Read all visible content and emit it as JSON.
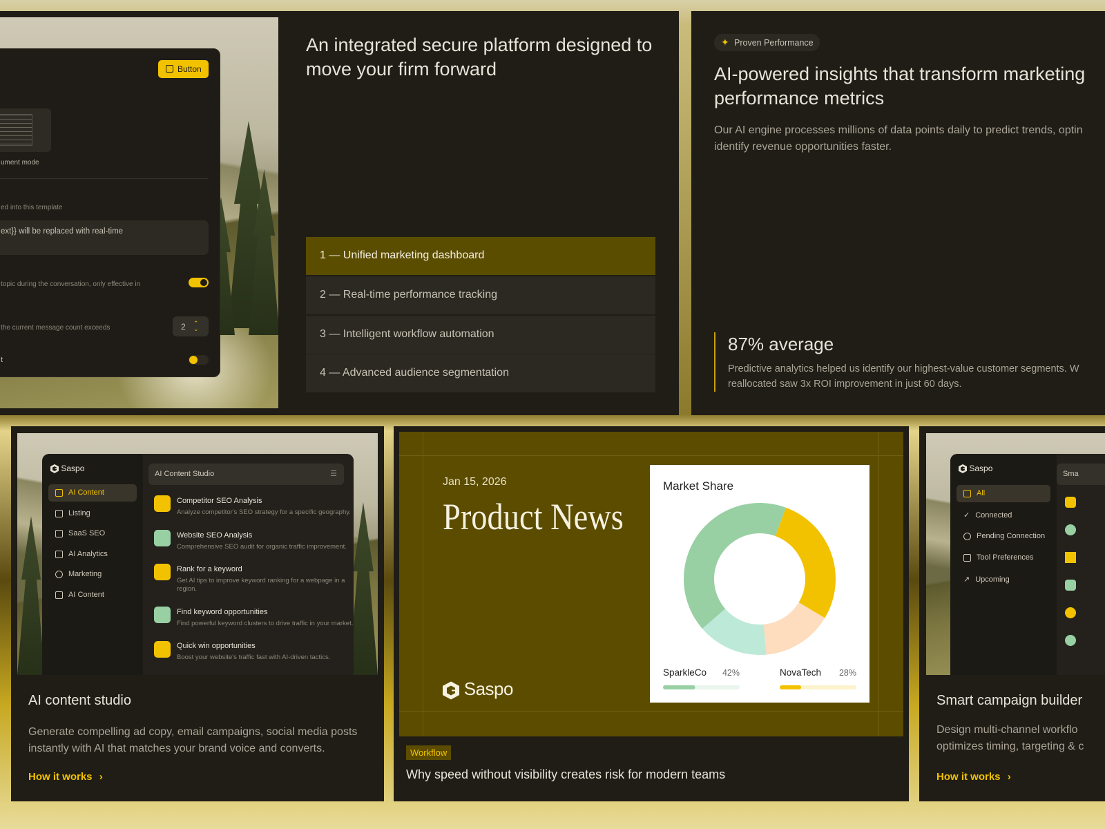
{
  "hero": {
    "settings_panel": {
      "button": "Button",
      "mode_label": "ument mode",
      "template_label": "ed into this template",
      "template_text": "ext}} will be replaced with real-time",
      "topic_label": "topic during the conversation, only effective in",
      "count_label": "the current message count exceeds",
      "count_value": 2,
      "last_label": "t"
    },
    "headline": "An integrated secure platform designed to move your firm forward",
    "features": [
      "1 — Unified marketing dashboard",
      "2 — Real-time performance tracking",
      "3 — Intelligent workflow automation",
      "4 — Advanced audience segmentation"
    ]
  },
  "insights": {
    "badge": "Proven Performance",
    "headline": "AI-powered insights that transform marketing performance metrics",
    "body_lines": [
      "Our AI engine processes millions of data points daily to predict trends, optin",
      "identify revenue opportunities faster."
    ],
    "stat": "87% average",
    "quote_lines": [
      "Predictive analytics helped us identify our highest-value customer segments. W",
      "reallocated saw 3x ROI improvement in just 60 days."
    ]
  },
  "content_card": {
    "app": {
      "logo": "Saspo",
      "nav": [
        "AI Content",
        "Listing",
        "SaaS SEO",
        "AI Analytics",
        "Marketing",
        "AI Content"
      ],
      "panel_title": "AI Content Studio",
      "items": [
        {
          "title": "Competitor SEO Analysis",
          "desc": "Analyze competitor's SEO strategy for a specific geography."
        },
        {
          "title": "Website SEO Analysis",
          "desc": "Comprehensive SEO audit for organic traffic improvement."
        },
        {
          "title": "Rank for a keyword",
          "desc": "Get AI tips to improve keyword ranking for a webpage in a region."
        },
        {
          "title": "Find keyword opportunities",
          "desc": "Find powerful keyword clusters to drive traffic in your market."
        },
        {
          "title": "Quick win opportunities",
          "desc": "Boost your website's traffic fast with AI-driven tactics."
        }
      ]
    },
    "title": "AI content studio",
    "desc": "Generate compelling ad copy, email campaigns, social media posts instantly with AI that matches your brand voice and converts.",
    "link": "How it works"
  },
  "news_card": {
    "date": "Jan 15, 2026",
    "headline": "Product News",
    "logo": "Saspo",
    "tag": "Workflow",
    "title": "Why speed without visibility creates risk for modern teams"
  },
  "campaign_card": {
    "app": {
      "logo": "Saspo",
      "nav": [
        "All",
        "Connected",
        "Pending Connection",
        "Tool Preferences",
        "Upcoming"
      ],
      "panel_title": "Sma"
    },
    "title": "Smart campaign builder",
    "desc_lines": [
      "Design multi-channel workflo",
      "optimizes timing, targeting & c"
    ],
    "link": "How it works"
  },
  "chart_data": {
    "type": "pie",
    "title": "Market Share",
    "categories": [
      "SparkleCo",
      "NovaTech",
      null,
      null
    ],
    "values": [
      42,
      28,
      15,
      15
    ],
    "value_labels": [
      "42%",
      "28%",
      null,
      null
    ],
    "colors": [
      "#98d0a4",
      "#f2c200",
      "#fedcbe",
      "#bde9d8"
    ],
    "donut": true
  }
}
